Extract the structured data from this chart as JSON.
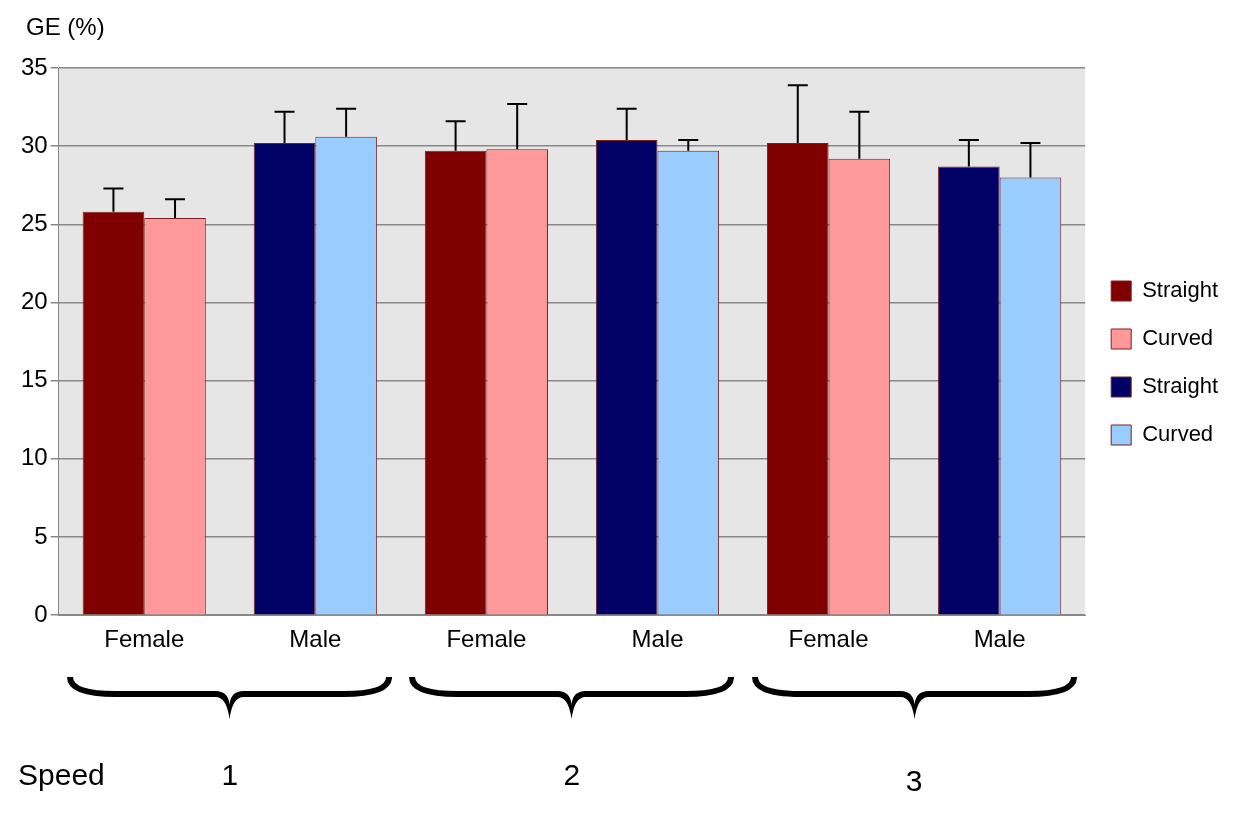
{
  "chart_data": {
    "type": "bar",
    "ylabel": "GE (%)",
    "categories": [
      "Female",
      "Male",
      "Female",
      "Male",
      "Female",
      "Male"
    ],
    "series": [
      {
        "name": "Straight",
        "color": "#800000",
        "values": [
          25.8,
          null,
          29.7,
          null,
          30.2,
          null
        ],
        "errors": [
          [
            25.8,
            27.3
          ],
          null,
          [
            29.7,
            31.6
          ],
          null,
          [
            30.2,
            33.9
          ],
          null
        ]
      },
      {
        "name": "Curved",
        "color": "#ff9999",
        "values": [
          25.4,
          null,
          29.8,
          null,
          29.2,
          null
        ],
        "errors": [
          [
            25.4,
            26.6
          ],
          null,
          [
            29.8,
            32.7
          ],
          null,
          [
            29.2,
            32.2
          ],
          null
        ]
      },
      {
        "name": "Straight",
        "color": "#000066",
        "values": [
          null,
          30.2,
          null,
          30.4,
          null,
          28.7
        ],
        "errors": [
          null,
          [
            30.2,
            32.2
          ],
          null,
          [
            30.4,
            32.4
          ],
          null,
          [
            28.7,
            30.4
          ]
        ]
      },
      {
        "name": "Curved",
        "color": "#99ccff",
        "values": [
          null,
          30.6,
          null,
          29.7,
          null,
          28.0
        ],
        "errors": [
          null,
          [
            30.6,
            32.4
          ],
          null,
          [
            29.7,
            30.4
          ],
          null,
          [
            28.0,
            30.2
          ]
        ]
      }
    ],
    "ylim": [
      0,
      35
    ],
    "yticks": [
      0,
      5,
      10,
      15,
      20,
      25,
      30,
      35
    ],
    "grid": "y",
    "legend": "right",
    "annotations": [
      "Speed",
      "1",
      "2",
      "3"
    ]
  }
}
